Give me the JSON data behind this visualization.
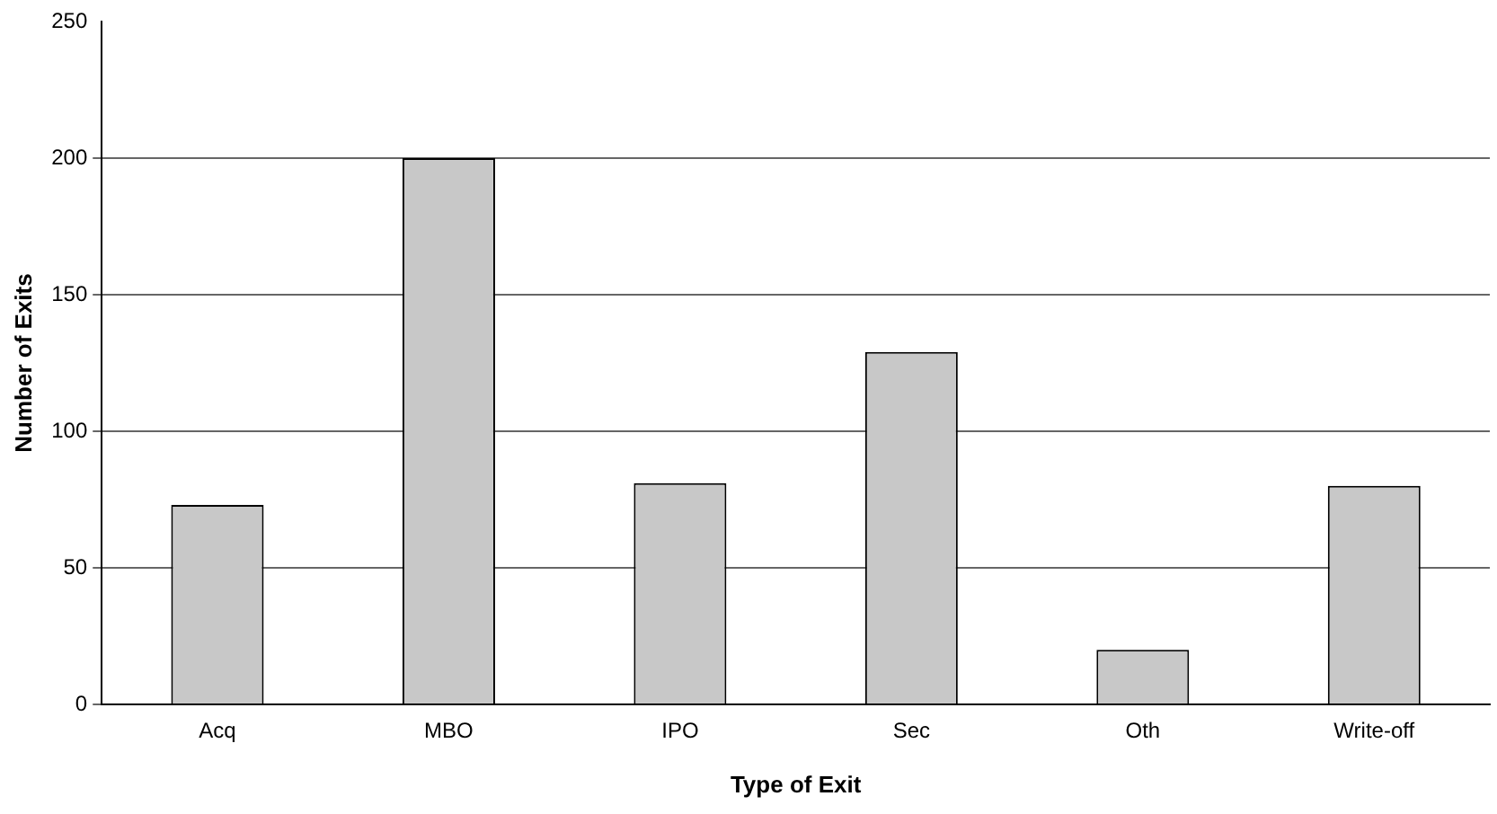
{
  "chart_data": {
    "type": "bar",
    "xlabel": "Type of Exit",
    "ylabel": "Number of Exits",
    "categories": [
      "Acq",
      "MBO",
      "IPO",
      "Sec",
      "Oth",
      "Write-off"
    ],
    "values": [
      73,
      200,
      81,
      129,
      20,
      80
    ],
    "color": "#c8c8c8",
    "ylim": [
      0,
      250
    ],
    "yticks": [
      0,
      50,
      100,
      150,
      200,
      250
    ],
    "grid": "y",
    "legend": false
  }
}
